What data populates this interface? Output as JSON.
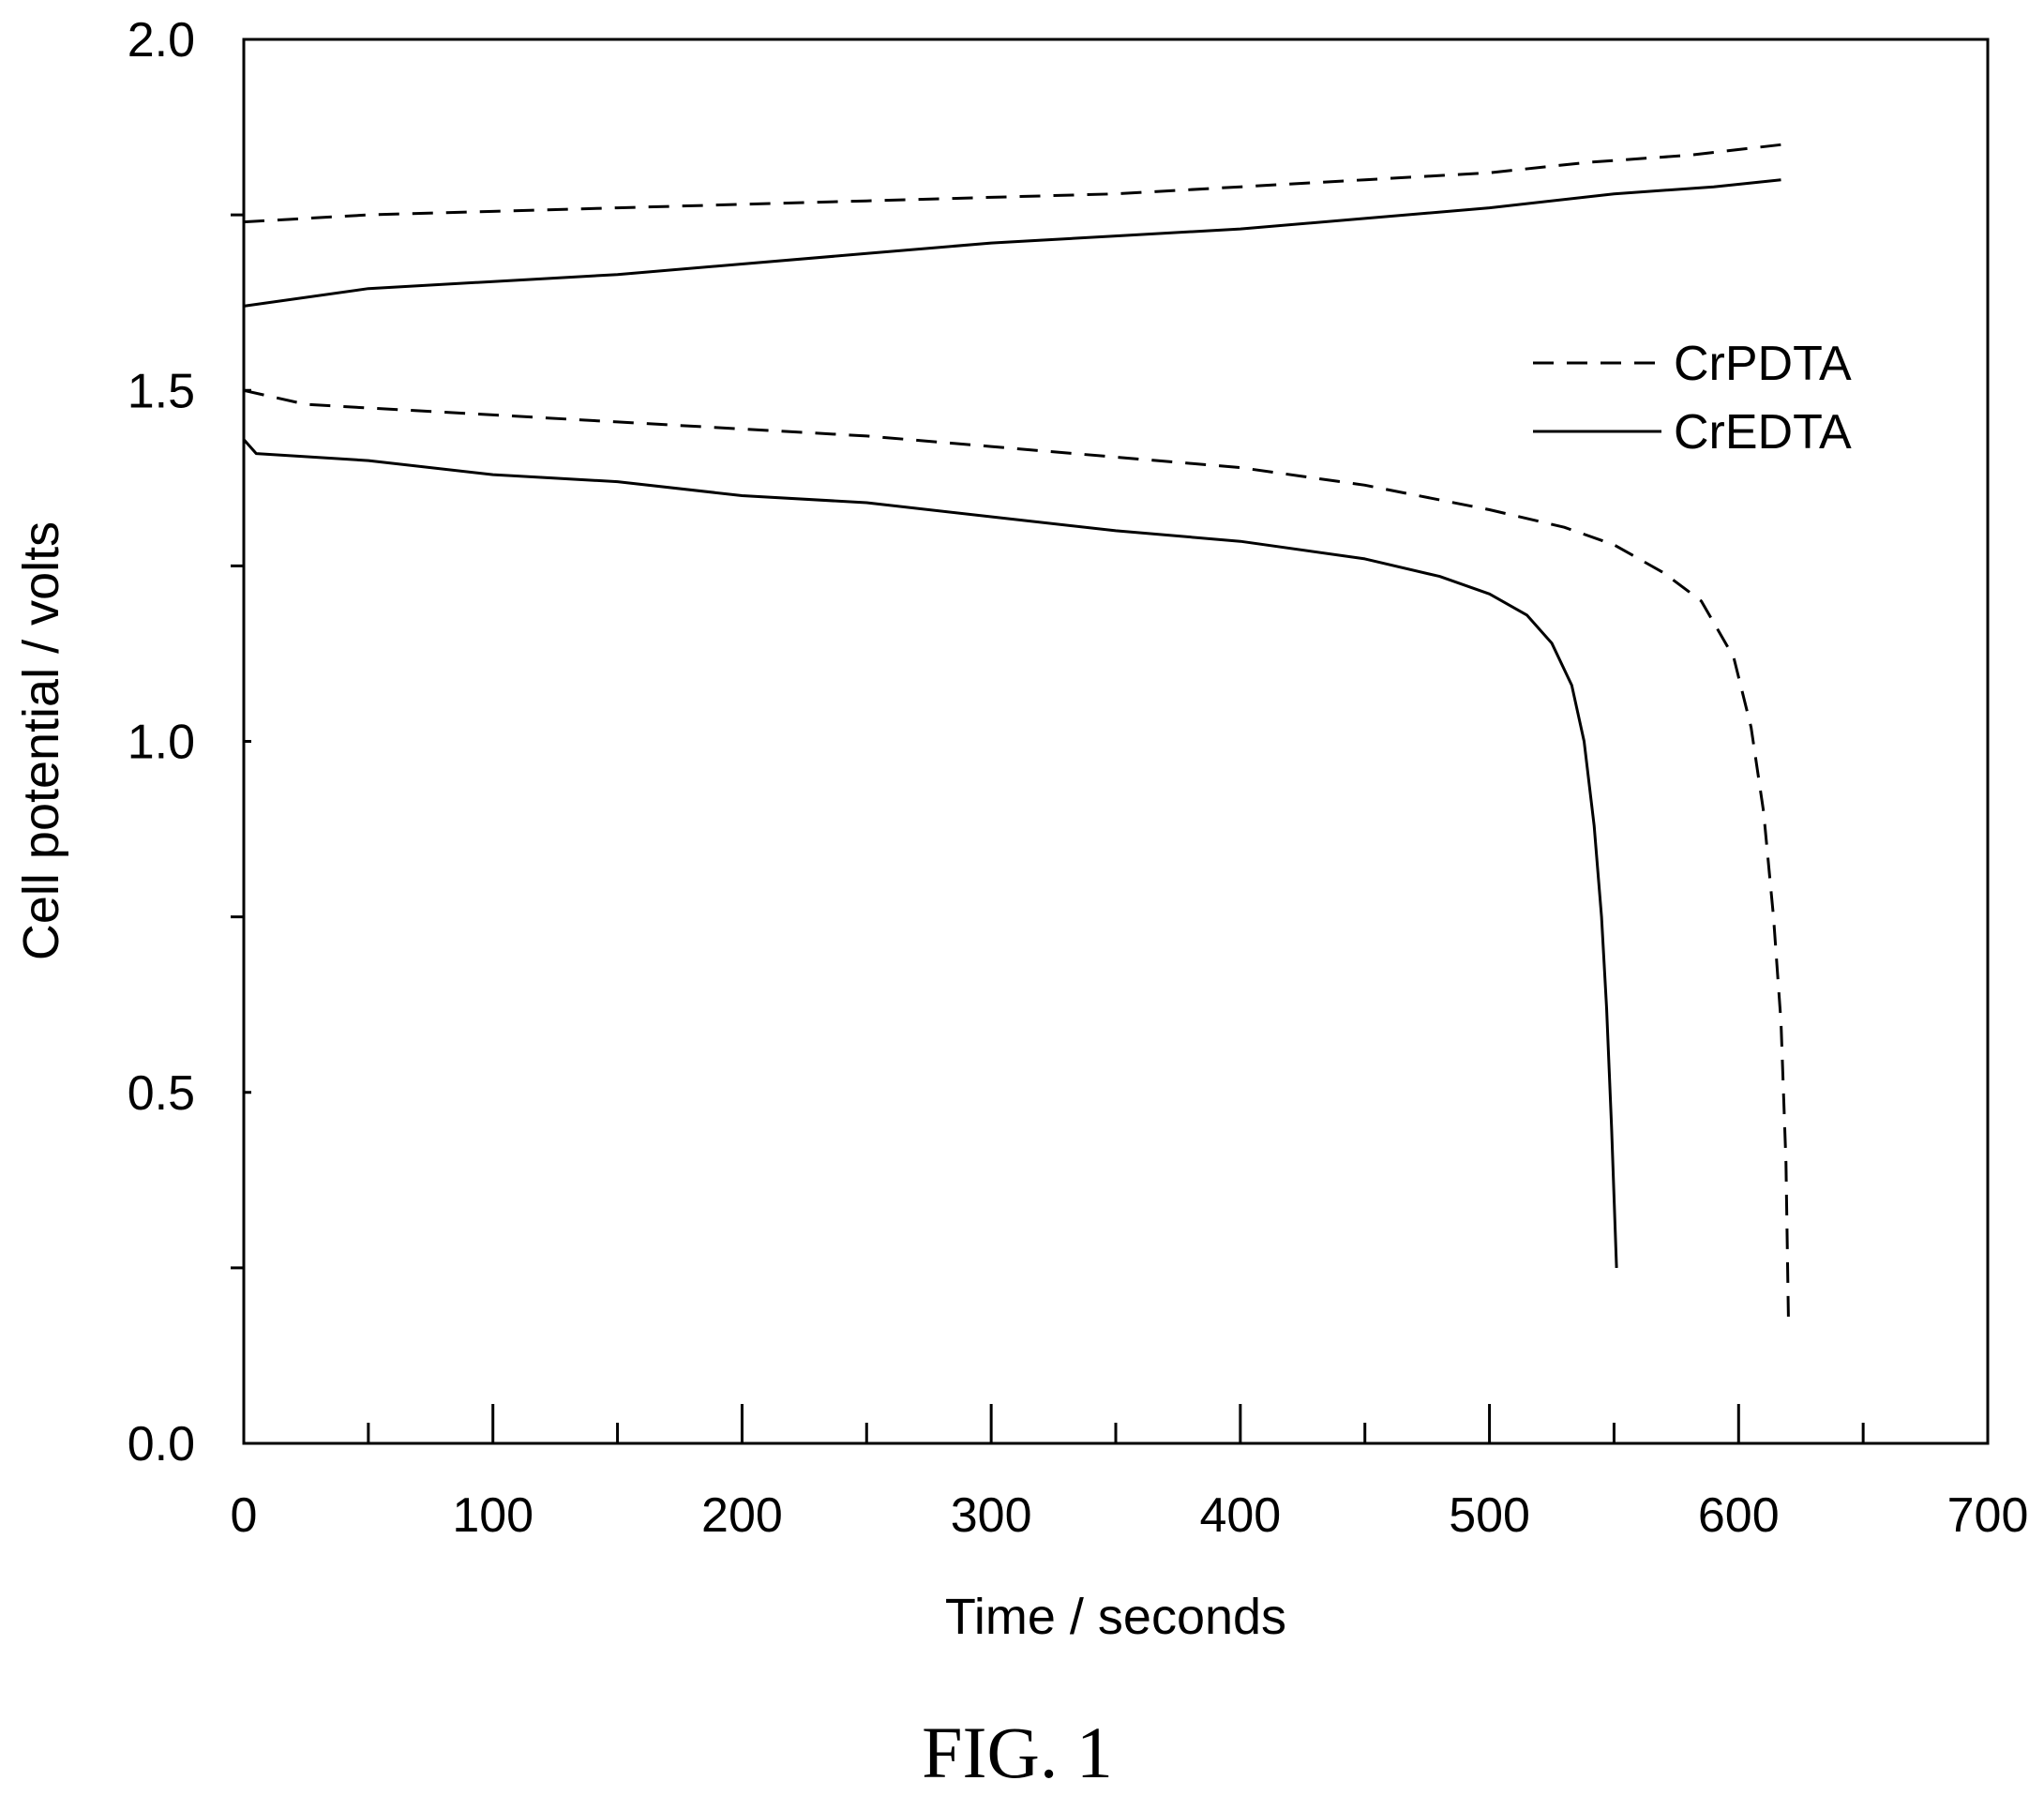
{
  "chart_data": {
    "type": "line",
    "xlabel": "Time / seconds",
    "ylabel": "Cell potential / volts",
    "xlim": [
      0,
      700
    ],
    "ylim": [
      0.0,
      2.0
    ],
    "x_ticks": [
      "0",
      "100",
      "200",
      "300",
      "400",
      "500",
      "600",
      "700"
    ],
    "y_ticks": [
      "0.0",
      "0.5",
      "1.0",
      "1.5",
      "2.0"
    ],
    "grid": false,
    "legend_position": "right",
    "series": [
      {
        "name": "CrPDTA",
        "style": "dashed",
        "color": "#000000",
        "segments": [
          [
            [
              0,
              1.74
            ],
            [
              50,
              1.75
            ],
            [
              100,
              1.755
            ],
            [
              150,
              1.76
            ],
            [
              200,
              1.765
            ],
            [
              250,
              1.77
            ],
            [
              300,
              1.775
            ],
            [
              350,
              1.78
            ],
            [
              400,
              1.79
            ],
            [
              450,
              1.8
            ],
            [
              500,
              1.81
            ],
            [
              540,
              1.825
            ],
            [
              580,
              1.835
            ],
            [
              617,
              1.85
            ]
          ],
          [
            [
              0,
              1.5
            ],
            [
              25,
              1.48
            ],
            [
              50,
              1.475
            ],
            [
              100,
              1.465
            ],
            [
              150,
              1.455
            ],
            [
              200,
              1.445
            ],
            [
              250,
              1.435
            ],
            [
              300,
              1.42
            ],
            [
              350,
              1.405
            ],
            [
              400,
              1.39
            ],
            [
              450,
              1.365
            ],
            [
              500,
              1.33
            ],
            [
              530,
              1.305
            ],
            [
              550,
              1.28
            ],
            [
              570,
              1.24
            ],
            [
              585,
              1.2
            ],
            [
              598,
              1.12
            ],
            [
              605,
              1.02
            ],
            [
              610,
              0.9
            ],
            [
              614,
              0.75
            ],
            [
              617,
              0.6
            ],
            [
              619,
              0.4
            ],
            [
              620,
              0.18
            ]
          ]
        ]
      },
      {
        "name": "CrEDTA",
        "style": "solid",
        "color": "#000000",
        "segments": [
          [
            [
              0,
              1.62
            ],
            [
              50,
              1.645
            ],
            [
              100,
              1.655
            ],
            [
              150,
              1.665
            ],
            [
              200,
              1.68
            ],
            [
              250,
              1.695
            ],
            [
              300,
              1.71
            ],
            [
              350,
              1.72
            ],
            [
              400,
              1.73
            ],
            [
              450,
              1.745
            ],
            [
              500,
              1.76
            ],
            [
              550,
              1.78
            ],
            [
              590,
              1.79
            ],
            [
              617,
              1.8
            ]
          ],
          [
            [
              0,
              1.43
            ],
            [
              5,
              1.41
            ],
            [
              50,
              1.4
            ],
            [
              100,
              1.38
            ],
            [
              150,
              1.37
            ],
            [
              200,
              1.35
            ],
            [
              250,
              1.34
            ],
            [
              300,
              1.32
            ],
            [
              350,
              1.3
            ],
            [
              400,
              1.285
            ],
            [
              450,
              1.26
            ],
            [
              480,
              1.235
            ],
            [
              500,
              1.21
            ],
            [
              515,
              1.18
            ],
            [
              525,
              1.14
            ],
            [
              533,
              1.08
            ],
            [
              538,
              1.0
            ],
            [
              542,
              0.88
            ],
            [
              545,
              0.75
            ],
            [
              547,
              0.62
            ],
            [
              549,
              0.45
            ],
            [
              551,
              0.25
            ]
          ]
        ]
      }
    ]
  },
  "caption": "FIG. 1"
}
